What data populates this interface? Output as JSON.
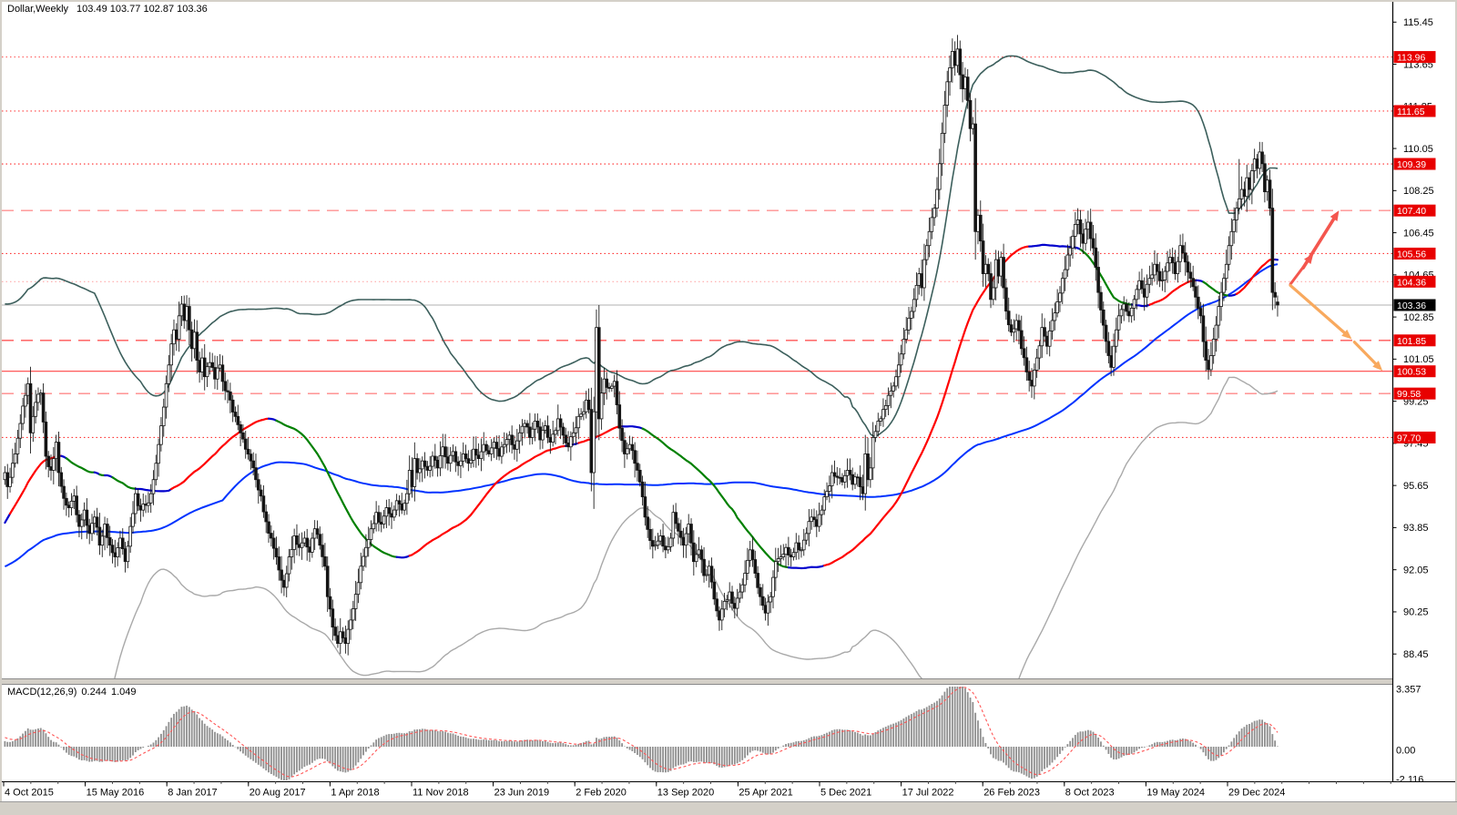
{
  "header": {
    "symbol_period": "Dollar,Weekly",
    "ohlc_text": "103.49 103.77 102.87 103.36"
  },
  "macd_header": {
    "label": "MACD(12,26,9)",
    "value": "0.244",
    "signal_value": "1.049"
  },
  "chart_data": {
    "type": "candlestick",
    "title": "Dollar,Weekly",
    "timeframe": "Weekly",
    "last_bar": {
      "open": 103.49,
      "high": 103.77,
      "low": 102.87,
      "close": 103.36
    },
    "price_ticks": [
      115.45,
      113.65,
      111.85,
      110.05,
      108.25,
      106.45,
      104.65,
      102.85,
      101.05,
      99.25,
      97.45,
      95.65,
      93.85,
      92.05,
      90.25,
      88.45
    ],
    "time_labels": [
      "4 Oct 2015",
      "15 May 2016",
      "8 Jan 2017",
      "20 Aug 2017",
      "1 Apr 2018",
      "11 Nov 2018",
      "23 Jun 2019",
      "2 Feb 2020",
      "13 Sep 2020",
      "25 Apr 2021",
      "5 Dec 2021",
      "17 Jul 2022",
      "26 Feb 2023",
      "8 Oct 2023",
      "19 May 2024",
      "29 Dec 2024"
    ],
    "current_price": {
      "value": 103.36,
      "display": "103.36",
      "line_color": "#b0b0b0",
      "badge_bg": "#000000",
      "badge_fg": "#ffffff"
    },
    "levels": [
      {
        "price": 113.96,
        "display": "113.96",
        "style": "dotted",
        "color": "#ff6060",
        "badge_bg": "#e80000"
      },
      {
        "price": 111.65,
        "display": "111.65",
        "style": "dotted",
        "color": "#ff4444",
        "badge_bg": "#e80000"
      },
      {
        "price": 109.39,
        "display": "109.39",
        "style": "dotted",
        "color": "#ff2a2a",
        "badge_bg": "#e80000"
      },
      {
        "price": 107.4,
        "display": "107.40",
        "style": "dashed",
        "color": "#ff9090",
        "badge_bg": "#e80000"
      },
      {
        "price": 105.56,
        "display": "105.56",
        "style": "dotted",
        "color": "#ff3333",
        "badge_bg": "#e80000"
      },
      {
        "price": 104.36,
        "display": "104.36",
        "style": "dotted",
        "color": "#ffaaaa",
        "badge_bg": "#e80000"
      },
      {
        "price": 101.85,
        "display": "101.85",
        "style": "dashed",
        "color": "#ff5555",
        "badge_bg": "#e80000"
      },
      {
        "price": 100.53,
        "display": "100.53",
        "style": "solid",
        "color": "#ff4444",
        "badge_bg": "#e80000"
      },
      {
        "price": 99.58,
        "display": "99.58",
        "style": "dashed",
        "color": "#ff8888",
        "badge_bg": "#e80000"
      },
      {
        "price": 97.7,
        "display": "97.70",
        "style": "dotted",
        "color": "#ff3333",
        "badge_bg": "#e80000"
      }
    ],
    "indicators": {
      "ma_fast": {
        "type": "slope-colored SMA",
        "period": 55,
        "color_up": "#ff0000",
        "color_down": "#008000",
        "color_flat": "#0000cd",
        "width": 2.2
      },
      "ma_slow": {
        "type": "SMA",
        "period": 150,
        "color": "#0033ff",
        "width": 2
      },
      "bollinger": {
        "period": 100,
        "deviation": 2,
        "upper_color": "#3c5f5c",
        "lower_color": "#a9a9a9"
      },
      "macd": {
        "label": "MACD(12,26,9)",
        "fast": 12,
        "slow": 26,
        "signal": 9,
        "value": 0.244,
        "signal_value": 1.049,
        "hist_color": "#8f8f8f",
        "signal_color": "#ff5555",
        "axis_max": "3.357",
        "axis_zero": "0.00",
        "axis_min": "-2.116"
      }
    },
    "arrows": [
      {
        "dir": "up",
        "from_bar": 502,
        "from_price": 104.25,
        "to_bar": 511,
        "to_price": 105.56,
        "color": "#f4564e",
        "width": 3.0
      },
      {
        "dir": "up",
        "from_bar": 507,
        "from_price": 104.95,
        "to_bar": 521,
        "to_price": 107.4,
        "color": "#f4564e",
        "width": 3.6
      },
      {
        "dir": "down",
        "from_bar": 502,
        "from_price": 104.2,
        "to_bar": 526,
        "to_price": 101.9,
        "color": "#f8a95e",
        "width": 3.2
      },
      {
        "dir": "down",
        "from_bar": 527,
        "from_price": 101.78,
        "to_bar": 538,
        "to_price": 100.55,
        "color": "#f8a95e",
        "width": 3.2
      }
    ],
    "pre_history": [
      80.2,
      80.4,
      80.7,
      81.0,
      81.4,
      81.9,
      82.5,
      83.0,
      83.6,
      84.3,
      85.0,
      85.7,
      86.4,
      87.1,
      87.6,
      88.0,
      88.5,
      88.9,
      87.9,
      88.5,
      89.4,
      90.3,
      91.2,
      92.1,
      92.5,
      93.1,
      94.2,
      94.8,
      95.0,
      94.5,
      95.2,
      96.0,
      97.2,
      98.1,
      99.3,
      100.1,
      99.0,
      97.9,
      97.1,
      96.8,
      97.9,
      97.4,
      96.1,
      95.0,
      94.3,
      95.6,
      96.4,
      95.3,
      94.1,
      93.4,
      94.9,
      95.7,
      96.5,
      97.1,
      96.2,
      95.8,
      96.7,
      97.5,
      96.4,
      95.7,
      96.1,
      95.2,
      94.6,
      95.8
    ],
    "price_anchors": [
      [
        0,
        96.2
      ],
      [
        1,
        95.6
      ],
      [
        2,
        96.0
      ],
      [
        3,
        96.6
      ],
      [
        4,
        97.0
      ],
      [
        6,
        98.3
      ],
      [
        8,
        99.5
      ],
      [
        9,
        100.0
      ],
      [
        10,
        97.9
      ],
      [
        12,
        99.2
      ],
      [
        14,
        99.6
      ],
      [
        16,
        96.9
      ],
      [
        18,
        96.3
      ],
      [
        20,
        97.5
      ],
      [
        21,
        96.2
      ],
      [
        23,
        95.1
      ],
      [
        25,
        94.7
      ],
      [
        27,
        95.2
      ],
      [
        29,
        93.9
      ],
      [
        31,
        94.6
      ],
      [
        33,
        93.6
      ],
      [
        35,
        94.3
      ],
      [
        37,
        93.1
      ],
      [
        39,
        94.0
      ],
      [
        41,
        93.1
      ],
      [
        43,
        92.6
      ],
      [
        45,
        93.4
      ],
      [
        47,
        92.4
      ],
      [
        49,
        93.9
      ],
      [
        51,
        95.3
      ],
      [
        53,
        94.6
      ],
      [
        55,
        94.8
      ],
      [
        57,
        95.3
      ],
      [
        58,
        95.9
      ],
      [
        59,
        96.6
      ],
      [
        60,
        97.4
      ],
      [
        61,
        98.2
      ],
      [
        62,
        99.0
      ],
      [
        63,
        100.0
      ],
      [
        64,
        100.8
      ],
      [
        65,
        101.7
      ],
      [
        66,
        102.3
      ],
      [
        67,
        101.9
      ],
      [
        68,
        102.9
      ],
      [
        69,
        103.4
      ],
      [
        70,
        102.7
      ],
      [
        71,
        103.3
      ],
      [
        72,
        102.3
      ],
      [
        73,
        101.5
      ],
      [
        74,
        102.2
      ],
      [
        75,
        101.0
      ],
      [
        76,
        100.5
      ],
      [
        77,
        101.1
      ],
      [
        78,
        100.3
      ],
      [
        80,
        100.9
      ],
      [
        82,
        100.2
      ],
      [
        84,
        100.8
      ],
      [
        86,
        99.7
      ],
      [
        88,
        99.3
      ],
      [
        90,
        98.6
      ],
      [
        92,
        97.9
      ],
      [
        94,
        97.2
      ],
      [
        96,
        96.7
      ],
      [
        98,
        95.9
      ],
      [
        100,
        95.2
      ],
      [
        102,
        94.1
      ],
      [
        104,
        93.4
      ],
      [
        106,
        92.6
      ],
      [
        108,
        91.6
      ],
      [
        109,
        91.3
      ],
      [
        111,
        92.6
      ],
      [
        113,
        93.5
      ],
      [
        115,
        93.0
      ],
      [
        117,
        93.4
      ],
      [
        119,
        92.8
      ],
      [
        121,
        93.8
      ],
      [
        123,
        93.1
      ],
      [
        125,
        92.2
      ],
      [
        126,
        90.9
      ],
      [
        128,
        89.6
      ],
      [
        130,
        88.9
      ],
      [
        131,
        89.4
      ],
      [
        133,
        88.9
      ],
      [
        135,
        89.9
      ],
      [
        137,
        91.0
      ],
      [
        139,
        92.2
      ],
      [
        141,
        93.0
      ],
      [
        143,
        93.8
      ],
      [
        145,
        94.5
      ],
      [
        147,
        94.0
      ],
      [
        149,
        94.7
      ],
      [
        151,
        94.3
      ],
      [
        153,
        95.0
      ],
      [
        155,
        94.6
      ],
      [
        157,
        95.3
      ],
      [
        158,
        96.3
      ],
      [
        159,
        95.6
      ],
      [
        160,
        96.8
      ],
      [
        161,
        96.2
      ],
      [
        163,
        96.7
      ],
      [
        165,
        96.3
      ],
      [
        167,
        96.9
      ],
      [
        169,
        96.4
      ],
      [
        171,
        97.3
      ],
      [
        173,
        96.6
      ],
      [
        175,
        97.1
      ],
      [
        177,
        96.5
      ],
      [
        179,
        97.0
      ],
      [
        181,
        96.6
      ],
      [
        183,
        97.2
      ],
      [
        185,
        96.8
      ],
      [
        187,
        97.4
      ],
      [
        189,
        97.0
      ],
      [
        191,
        97.5
      ],
      [
        193,
        96.9
      ],
      [
        195,
        97.4
      ],
      [
        197,
        97.8
      ],
      [
        199,
        97.2
      ],
      [
        201,
        97.9
      ],
      [
        203,
        98.3
      ],
      [
        205,
        97.7
      ],
      [
        207,
        98.4
      ],
      [
        209,
        97.6
      ],
      [
        211,
        98.2
      ],
      [
        213,
        97.5
      ],
      [
        215,
        98.0
      ],
      [
        216,
        98.5
      ],
      [
        218,
        97.8
      ],
      [
        220,
        97.3
      ],
      [
        222,
        97.9
      ],
      [
        224,
        98.6
      ],
      [
        226,
        98.8
      ],
      [
        227,
        99.3
      ],
      [
        228,
        98.9
      ],
      [
        229,
        96.2
      ],
      [
        230,
        98.8
      ],
      [
        231,
        102.4
      ],
      [
        232,
        98.5
      ],
      [
        233,
        99.6
      ],
      [
        234,
        100.2
      ],
      [
        236,
        99.8
      ],
      [
        238,
        100.1
      ],
      [
        240,
        98.1
      ],
      [
        242,
        97.0
      ],
      [
        244,
        97.4
      ],
      [
        246,
        96.6
      ],
      [
        248,
        95.8
      ],
      [
        250,
        94.3
      ],
      [
        252,
        93.3
      ],
      [
        254,
        93.1
      ],
      [
        256,
        93.5
      ],
      [
        258,
        92.9
      ],
      [
        260,
        93.4
      ],
      [
        261,
        94.5
      ],
      [
        263,
        93.7
      ],
      [
        265,
        93.1
      ],
      [
        267,
        94.0
      ],
      [
        269,
        92.4
      ],
      [
        271,
        92.9
      ],
      [
        273,
        91.8
      ],
      [
        275,
        92.2
      ],
      [
        277,
        90.8
      ],
      [
        279,
        89.9
      ],
      [
        281,
        90.7
      ],
      [
        283,
        91.1
      ],
      [
        285,
        90.4
      ],
      [
        287,
        91.1
      ],
      [
        289,
        91.9
      ],
      [
        291,
        92.9
      ],
      [
        293,
        91.9
      ],
      [
        295,
        90.9
      ],
      [
        297,
        90.2
      ],
      [
        299,
        90.9
      ],
      [
        301,
        92.4
      ],
      [
        303,
        92.6
      ],
      [
        305,
        93.0
      ],
      [
        307,
        92.6
      ],
      [
        309,
        93.2
      ],
      [
        311,
        92.9
      ],
      [
        313,
        93.6
      ],
      [
        315,
        94.3
      ],
      [
        317,
        93.9
      ],
      [
        319,
        94.6
      ],
      [
        321,
        95.4
      ],
      [
        323,
        96.2
      ],
      [
        325,
        96.0
      ],
      [
        327,
        95.8
      ],
      [
        329,
        96.3
      ],
      [
        331,
        95.7
      ],
      [
        333,
        96.0
      ],
      [
        335,
        95.3
      ],
      [
        336,
        97.0
      ],
      [
        337,
        95.9
      ],
      [
        338,
        96.4
      ],
      [
        339,
        97.7
      ],
      [
        341,
        98.4
      ],
      [
        343,
        98.9
      ],
      [
        345,
        99.5
      ],
      [
        347,
        99.9
      ],
      [
        349,
        100.8
      ],
      [
        351,
        101.9
      ],
      [
        353,
        102.8
      ],
      [
        355,
        103.6
      ],
      [
        357,
        104.7
      ],
      [
        358,
        104.1
      ],
      [
        359,
        105.3
      ],
      [
        360,
        105.9
      ],
      [
        361,
        106.5
      ],
      [
        362,
        107.1
      ],
      [
        363,
        107.5
      ],
      [
        364,
        108.3
      ],
      [
        365,
        109.4
      ],
      [
        366,
        110.7
      ],
      [
        367,
        111.9
      ],
      [
        368,
        112.9
      ],
      [
        369,
        113.5
      ],
      [
        370,
        114.2
      ],
      [
        371,
        113.6
      ],
      [
        372,
        114.3
      ],
      [
        373,
        113.2
      ],
      [
        374,
        112.6
      ],
      [
        375,
        113.1
      ],
      [
        376,
        112.1
      ],
      [
        377,
        110.9
      ],
      [
        378,
        111.1
      ],
      [
        379,
        106.5
      ],
      [
        380,
        107.2
      ],
      [
        381,
        106.1
      ],
      [
        382,
        104.7
      ],
      [
        383,
        105.1
      ],
      [
        384,
        104.7
      ],
      [
        385,
        103.6
      ],
      [
        386,
        104.1
      ],
      [
        387,
        105.3
      ],
      [
        388,
        104.6
      ],
      [
        389,
        105.4
      ],
      [
        390,
        104.1
      ],
      [
        391,
        103.1
      ],
      [
        393,
        102.2
      ],
      [
        395,
        102.7
      ],
      [
        397,
        101.5
      ],
      [
        399,
        100.5
      ],
      [
        401,
        99.9
      ],
      [
        403,
        101.1
      ],
      [
        405,
        102.4
      ],
      [
        407,
        101.6
      ],
      [
        409,
        102.7
      ],
      [
        411,
        103.5
      ],
      [
        413,
        104.5
      ],
      [
        415,
        105.5
      ],
      [
        417,
        106.3
      ],
      [
        419,
        107.0
      ],
      [
        420,
        106.4
      ],
      [
        421,
        106.0
      ],
      [
        422,
        106.6
      ],
      [
        423,
        106.9
      ],
      [
        424,
        106.2
      ],
      [
        425,
        105.8
      ],
      [
        427,
        103.9
      ],
      [
        429,
        102.5
      ],
      [
        431,
        101.2
      ],
      [
        432,
        100.7
      ],
      [
        433,
        101.6
      ],
      [
        434,
        102.3
      ],
      [
        435,
        102.9
      ],
      [
        437,
        103.4
      ],
      [
        439,
        102.9
      ],
      [
        441,
        103.6
      ],
      [
        443,
        104.4
      ],
      [
        445,
        103.7
      ],
      [
        447,
        104.5
      ],
      [
        449,
        105.1
      ],
      [
        451,
        104.4
      ],
      [
        453,
        104.8
      ],
      [
        455,
        105.4
      ],
      [
        457,
        104.7
      ],
      [
        459,
        105.9
      ],
      [
        461,
        105.2
      ],
      [
        463,
        104.5
      ],
      [
        465,
        103.7
      ],
      [
        467,
        102.9
      ],
      [
        468,
        101.8
      ],
      [
        469,
        101.0
      ],
      [
        470,
        100.6
      ],
      [
        471,
        101.2
      ],
      [
        472,
        101.9
      ],
      [
        473,
        102.5
      ],
      [
        474,
        103.3
      ],
      [
        475,
        103.9
      ],
      [
        476,
        104.5
      ],
      [
        477,
        105.1
      ],
      [
        478,
        105.9
      ],
      [
        479,
        106.5
      ],
      [
        480,
        107.0
      ],
      [
        481,
        107.5
      ],
      [
        482,
        107.9
      ],
      [
        483,
        108.3
      ],
      [
        484,
        108.0
      ],
      [
        485,
        108.8
      ],
      [
        486,
        108.3
      ],
      [
        487,
        109.1
      ],
      [
        488,
        109.6
      ],
      [
        489,
        109.2
      ],
      [
        490,
        109.9
      ],
      [
        491,
        109.4
      ],
      [
        492,
        108.2
      ],
      [
        493,
        108.7
      ],
      [
        494,
        107.5
      ],
      [
        495,
        103.9
      ],
      [
        496,
        103.7
      ],
      [
        497,
        103.4
      ]
    ],
    "spikes": [
      {
        "i": 229,
        "low": 95.4
      },
      {
        "i": 230,
        "low": 94.65,
        "high": 99.2
      },
      {
        "i": 231,
        "high": 102.99
      },
      {
        "i": 370,
        "high": 114.5
      },
      {
        "i": 372,
        "high": 114.9
      },
      {
        "i": 482,
        "high": 109.6
      },
      {
        "i": 490,
        "high": 110.3
      },
      {
        "i": 495,
        "low": 103.6
      }
    ],
    "macd_axis": {
      "max": "3.357",
      "zero": "0.00",
      "min": "-2.116"
    },
    "scroll_marker_color": "#a0a0a0"
  }
}
